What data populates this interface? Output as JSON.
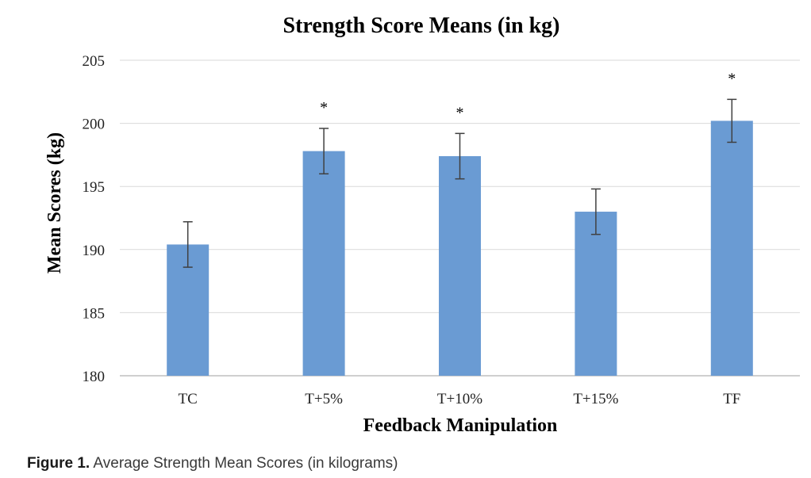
{
  "chart_data": {
    "type": "bar",
    "title": "Strength Score Means (in kg)",
    "xlabel": "Feedback Manipulation",
    "ylabel": "Mean Scores (kg)",
    "categories": [
      "TC",
      "T+5%",
      "T+10%",
      "T+15%",
      "TF"
    ],
    "values": [
      190.4,
      197.8,
      197.4,
      193.0,
      200.2
    ],
    "error": [
      1.8,
      1.8,
      1.8,
      1.8,
      1.7
    ],
    "significance": [
      "",
      "*",
      "*",
      "",
      "*"
    ],
    "ylim": [
      180,
      205
    ],
    "yticks": [
      180,
      185,
      190,
      195,
      200,
      205
    ],
    "grid": true,
    "bar_color": "#6a9bd3",
    "errorbar_color": "#404040",
    "grid_color": "#d9d9d9"
  },
  "caption": {
    "label": "Figure 1.",
    "text": "Average Strength Mean Scores (in kilograms)"
  }
}
